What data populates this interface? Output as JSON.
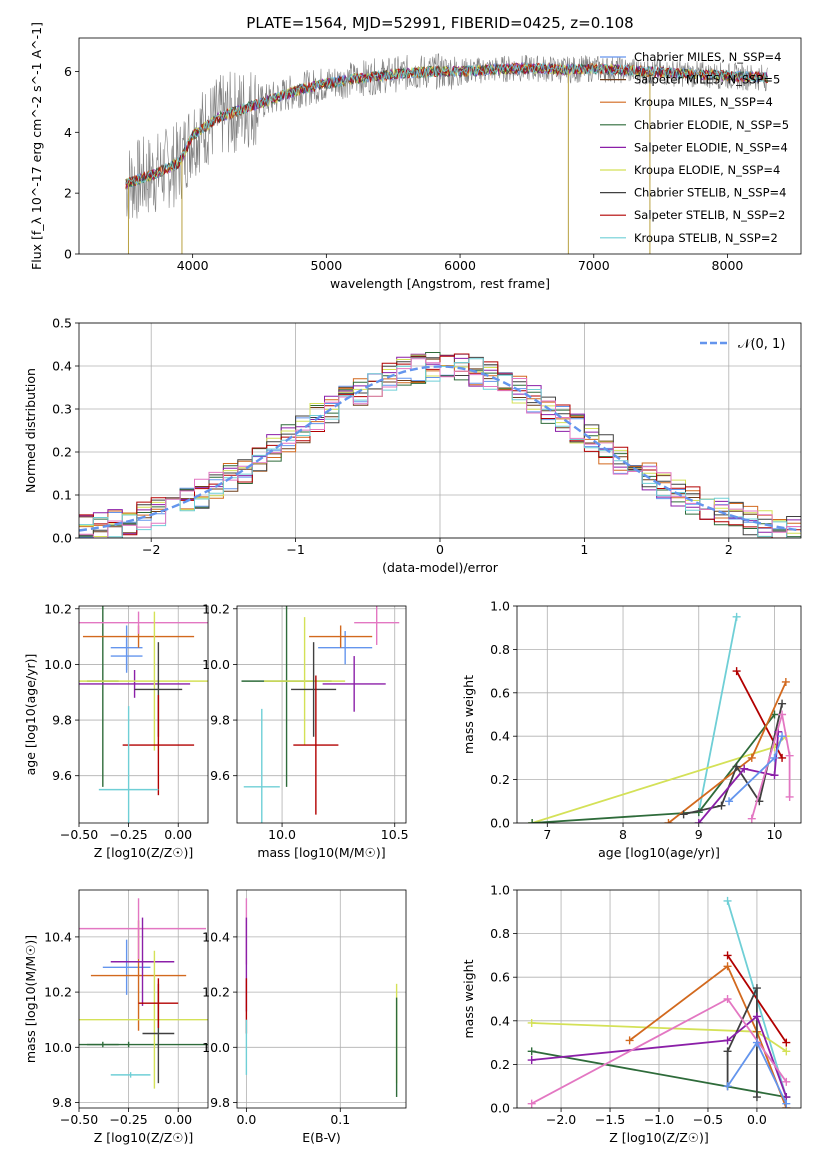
{
  "figure_title": "PLATE=1564, MJD=52991, FIBERID=0425, z=0.108",
  "colors": [
    "#6495ed",
    "#6f3e1a",
    "#d2691e",
    "#2e6b3a",
    "#8b1fa8",
    "#d4e157",
    "#404040",
    "#b20000",
    "#6fcfd6",
    "#e377c2"
  ],
  "chart_data": [
    {
      "id": "spectrum",
      "type": "line",
      "xlabel": "wavelength [Angstrom, rest frame]",
      "ylabel": "Flux [f_λ 10^-17 erg cm^-2 s^-1 A^-1]",
      "xlim": [
        3150,
        8550
      ],
      "ylim": [
        0,
        7.1
      ],
      "xticks": [
        "4000",
        "5000",
        "6000",
        "7000",
        "8000"
      ],
      "yticks": [
        "0",
        "2",
        "4",
        "6"
      ],
      "grid": false,
      "legend_position": "right",
      "legend": [
        {
          "label": "Chabrier MILES, N_SSP=4",
          "color": "#6495ed"
        },
        {
          "label": "Salpeter MILES, N_SSP=5",
          "color": "#6f3e1a"
        },
        {
          "label": "Kroupa MILES, N_SSP=4",
          "color": "#d2691e"
        },
        {
          "label": "Chabrier ELODIE, N_SSP=5",
          "color": "#2e6b3a"
        },
        {
          "label": "Salpeter ELODIE, N_SSP=4",
          "color": "#8b1fa8"
        },
        {
          "label": "Kroupa ELODIE, N_SSP=4",
          "color": "#d4e157"
        },
        {
          "label": "Chabrier STELIB, N_SSP=4",
          "color": "#404040"
        },
        {
          "label": "Salpeter STELIB, N_SSP=2",
          "color": "#b20000"
        },
        {
          "label": "Kroupa STELIB, N_SSP=2",
          "color": "#6fcfd6"
        }
      ],
      "continuum": [
        [
          3500,
          2.3
        ],
        [
          3700,
          2.6
        ],
        [
          3900,
          3.0
        ],
        [
          4000,
          3.9
        ],
        [
          4200,
          4.5
        ],
        [
          4400,
          4.8
        ],
        [
          4600,
          5.1
        ],
        [
          4800,
          5.4
        ],
        [
          5000,
          5.6
        ],
        [
          5200,
          5.75
        ],
        [
          5400,
          5.85
        ],
        [
          5600,
          5.95
        ],
        [
          5800,
          6.0
        ],
        [
          6000,
          6.0
        ],
        [
          6200,
          6.05
        ],
        [
          6400,
          6.1
        ],
        [
          6600,
          6.1
        ],
        [
          6800,
          6.05
        ],
        [
          7000,
          6.1
        ],
        [
          7200,
          6.05
        ],
        [
          7400,
          6.0
        ],
        [
          7600,
          5.95
        ],
        [
          7800,
          5.9
        ],
        [
          8000,
          5.85
        ],
        [
          8300,
          5.8
        ]
      ],
      "emission_spikes": [
        {
          "x": 3520,
          "y": 0
        },
        {
          "x": 3920,
          "y": 0
        },
        {
          "x": 6810,
          "y": 0
        },
        {
          "x": 7420,
          "y": 0
        }
      ]
    },
    {
      "id": "residuals",
      "type": "step",
      "xlabel": "(data-model)/error",
      "ylabel": "Normed distribution",
      "xlim": [
        -2.5,
        2.5
      ],
      "ylim": [
        0,
        0.5
      ],
      "xticks": [
        "-2",
        "-1",
        "0",
        "1",
        "2"
      ],
      "yticks": [
        "0.0",
        "0.1",
        "0.2",
        "0.3",
        "0.4",
        "0.5"
      ],
      "grid": true,
      "legend_position": "top-right",
      "legend": [
        {
          "label": "𝒩(0, 1)",
          "color": "#6495ed",
          "dashed": true
        }
      ],
      "bin_width": 0.1
    },
    {
      "id": "age_vs_Z",
      "type": "errorbar",
      "xlabel": "Z [log10(Z/Z☉)]",
      "ylabel": "age [log10(age/yr)]",
      "xlim": [
        -0.5,
        0.15
      ],
      "ylim": [
        9.43,
        10.21
      ],
      "xticks": [
        "-0.50",
        "-0.25",
        "0.00"
      ],
      "yticks": [
        "9.6",
        "9.8",
        "10.0",
        "10.2"
      ],
      "grid": true,
      "points": [
        {
          "x": -0.38,
          "xerr": 0.08,
          "y": 9.94,
          "yerr": 0.38,
          "color": "#2e6b3a"
        },
        {
          "x": -0.26,
          "xerr": 0.08,
          "y": 10.03,
          "yerr": 0.06,
          "color": "#6495ed"
        },
        {
          "x": -0.26,
          "xerr": 0.08,
          "y": 10.06,
          "yerr": 0.08,
          "color": "#6495ed"
        },
        {
          "x": -0.2,
          "xerr": 0.28,
          "y": 10.1,
          "yerr": 0.04,
          "color": "#d2691e"
        },
        {
          "x": -0.2,
          "xerr": 0.35,
          "y": 10.15,
          "yerr": 0.04,
          "color": "#e377c2"
        },
        {
          "x": -0.22,
          "xerr": 0.28,
          "y": 9.93,
          "yerr": 0.05,
          "color": "#8b1fa8"
        },
        {
          "x": -0.12,
          "xerr": 0.44,
          "y": 9.94,
          "yerr": 0.25,
          "color": "#d4e157"
        },
        {
          "x": -0.1,
          "xerr": 0.12,
          "y": 9.91,
          "yerr": 0.17,
          "color": "#404040"
        },
        {
          "x": -0.1,
          "xerr": 0.18,
          "y": 9.71,
          "yerr": 0.18,
          "color": "#b20000"
        },
        {
          "x": -0.25,
          "xerr": 0.15,
          "y": 9.55,
          "yerr": 0.3,
          "color": "#6fcfd6"
        }
      ]
    },
    {
      "id": "age_vs_mass",
      "type": "errorbar",
      "xlabel": "mass [log10(M/M☉)]",
      "ylabel": "",
      "xlim": [
        9.8,
        10.55
      ],
      "ylim": [
        9.43,
        10.21
      ],
      "xticks": [
        "10.0",
        "10.5"
      ],
      "yticks": [
        "9.6",
        "9.8",
        "10.0",
        "10.2"
      ],
      "grid": true,
      "points": [
        {
          "x": 10.02,
          "xerr": 0.2,
          "y": 9.94,
          "yerr": 0.38,
          "color": "#2e6b3a"
        },
        {
          "x": 10.28,
          "xerr": 0.12,
          "y": 10.06,
          "yerr": 0.06,
          "color": "#6495ed"
        },
        {
          "x": 10.26,
          "xerr": 0.14,
          "y": 10.1,
          "yerr": 0.04,
          "color": "#d2691e"
        },
        {
          "x": 10.42,
          "xerr": 0.1,
          "y": 10.15,
          "yerr": 0.08,
          "color": "#e377c2"
        },
        {
          "x": 10.32,
          "xerr": 0.14,
          "y": 9.93,
          "yerr": 0.1,
          "color": "#8b1fa8"
        },
        {
          "x": 10.1,
          "xerr": 0.18,
          "y": 9.94,
          "yerr": 0.23,
          "color": "#d4e157"
        },
        {
          "x": 10.14,
          "xerr": 0.1,
          "y": 9.91,
          "yerr": 0.17,
          "color": "#404040"
        },
        {
          "x": 10.15,
          "xerr": 0.1,
          "y": 9.71,
          "yerr": 0.25,
          "color": "#b20000"
        },
        {
          "x": 9.91,
          "xerr": 0.08,
          "y": 9.56,
          "yerr": 0.28,
          "color": "#6fcfd6"
        }
      ]
    },
    {
      "id": "weight_vs_age",
      "type": "line",
      "xlabel": "age [log10(age/yr)]",
      "ylabel": "mass weight",
      "xlim": [
        6.6,
        10.35
      ],
      "ylim": [
        0,
        1.0
      ],
      "xticks": [
        "7",
        "8",
        "9",
        "10"
      ],
      "yticks": [
        "0.0",
        "0.2",
        "0.4",
        "0.6",
        "0.8",
        "1.0"
      ],
      "grid": true,
      "series": [
        {
          "color": "#6fcfd6",
          "points": [
            [
              9.0,
              0.05
            ],
            [
              9.5,
              0.95
            ]
          ]
        },
        {
          "color": "#b20000",
          "points": [
            [
              9.5,
              0.7
            ],
            [
              10.1,
              0.3
            ]
          ]
        },
        {
          "color": "#d4e157",
          "points": [
            [
              6.8,
              0.0
            ],
            [
              10.0,
              0.35
            ],
            [
              10.15,
              0.4
            ]
          ]
        },
        {
          "color": "#2e6b3a",
          "points": [
            [
              6.8,
              0.0
            ],
            [
              9.0,
              0.05
            ],
            [
              10.0,
              0.5
            ]
          ]
        },
        {
          "color": "#d2691e",
          "points": [
            [
              8.6,
              0.0
            ],
            [
              9.7,
              0.3
            ],
            [
              10.15,
              0.65
            ]
          ]
        },
        {
          "color": "#404040",
          "points": [
            [
              8.8,
              0.04
            ],
            [
              9.3,
              0.08
            ],
            [
              9.5,
              0.26
            ],
            [
              9.8,
              0.1
            ],
            [
              10.1,
              0.55
            ]
          ]
        },
        {
          "color": "#8b1fa8",
          "points": [
            [
              9.0,
              0.0
            ],
            [
              9.6,
              0.25
            ],
            [
              10.0,
              0.22
            ],
            [
              10.05,
              0.42
            ]
          ]
        },
        {
          "color": "#e377c2",
          "points": [
            [
              9.7,
              0.02
            ],
            [
              10.1,
              0.5
            ],
            [
              10.2,
              0.31
            ],
            [
              10.2,
              0.12
            ]
          ]
        },
        {
          "color": "#6495ed",
          "points": [
            [
              9.4,
              0.1
            ],
            [
              10.0,
              0.3
            ],
            [
              10.1,
              0.4
            ]
          ]
        }
      ]
    },
    {
      "id": "mass_vs_Z",
      "type": "errorbar",
      "xlabel": "Z [log10(Z/Z☉)]",
      "ylabel": "mass [log10(M/M☉)]",
      "xlim": [
        -0.5,
        0.15
      ],
      "ylim": [
        9.78,
        10.57
      ],
      "xticks": [
        "-0.50",
        "-0.25",
        "0.00"
      ],
      "yticks": [
        "9.8",
        "10.0",
        "10.2",
        "10.4"
      ],
      "grid": true,
      "points": [
        {
          "x": -0.38,
          "xerr": 0.08,
          "y": 10.01,
          "yerr": 0.01,
          "color": "#2e6b3a"
        },
        {
          "x": -0.25,
          "xerr": 0.46,
          "y": 10.01,
          "yerr": 0.01,
          "color": "#2e6b3a"
        },
        {
          "x": -0.26,
          "xerr": 0.12,
          "y": 10.29,
          "yerr": 0.1,
          "color": "#6495ed"
        },
        {
          "x": -0.2,
          "xerr": 0.24,
          "y": 10.26,
          "yerr": 0.2,
          "color": "#d2691e"
        },
        {
          "x": -0.2,
          "xerr": 0.34,
          "y": 10.43,
          "yerr": 0.11,
          "color": "#e377c2"
        },
        {
          "x": -0.18,
          "xerr": 0.16,
          "y": 10.31,
          "yerr": 0.16,
          "color": "#8b1fa8"
        },
        {
          "x": -0.12,
          "xerr": 0.4,
          "y": 10.1,
          "yerr": 0.25,
          "color": "#d4e157"
        },
        {
          "x": -0.1,
          "xerr": 0.08,
          "y": 10.05,
          "yerr": 0.18,
          "color": "#404040"
        },
        {
          "x": -0.1,
          "xerr": 0.1,
          "y": 10.16,
          "yerr": 0.09,
          "color": "#b20000"
        },
        {
          "x": -0.24,
          "xerr": 0.1,
          "y": 9.9,
          "yerr": 0.01,
          "color": "#6fcfd6"
        }
      ]
    },
    {
      "id": "mass_vs_EBV",
      "type": "errorbar",
      "xlabel": "E(B-V)",
      "ylabel": "",
      "xlim": [
        -0.01,
        0.17
      ],
      "ylim": [
        9.78,
        10.57
      ],
      "xticks": [
        "0.0",
        "0.1"
      ],
      "yticks": [
        "9.8",
        "10.0",
        "10.2",
        "10.4"
      ],
      "grid": true,
      "points": [
        {
          "x": 0.0,
          "xerr": 0,
          "y": 10.42,
          "yerr": 0.12,
          "color": "#e377c2"
        },
        {
          "x": 0.0,
          "xerr": 0,
          "y": 10.3,
          "yerr": 0.17,
          "color": "#8b1fa8"
        },
        {
          "x": 0.0,
          "xerr": 0,
          "y": 10.15,
          "yerr": 0.1,
          "color": "#b20000"
        },
        {
          "x": 0.0,
          "xerr": 0,
          "y": 10.0,
          "yerr": 0.1,
          "color": "#6fcfd6"
        },
        {
          "x": 0.16,
          "xerr": 0,
          "y": 10.05,
          "yerr": 0.18,
          "color": "#d4e157"
        },
        {
          "x": 0.16,
          "xerr": 0,
          "y": 10.0,
          "yerr": 0.18,
          "color": "#2e6b3a"
        }
      ]
    },
    {
      "id": "weight_vs_Z",
      "type": "line",
      "xlabel": "Z [log10(Z/Z☉)]",
      "ylabel": "mass weight",
      "xlim": [
        -2.45,
        0.45
      ],
      "ylim": [
        0,
        1.0
      ],
      "xticks": [
        "-2.0",
        "-1.5",
        "-1.0",
        "-0.5",
        "0.0"
      ],
      "yticks": [
        "0.0",
        "0.2",
        "0.4",
        "0.6",
        "0.8",
        "1.0"
      ],
      "grid": true,
      "series": [
        {
          "color": "#6fcfd6",
          "points": [
            [
              -0.3,
              0.95
            ],
            [
              0.3,
              0.05
            ]
          ]
        },
        {
          "color": "#b20000",
          "points": [
            [
              -0.3,
              0.7
            ],
            [
              0.3,
              0.3
            ]
          ]
        },
        {
          "color": "#d4e157",
          "points": [
            [
              -2.3,
              0.39
            ],
            [
              0.0,
              0.35
            ],
            [
              0.3,
              0.26
            ]
          ]
        },
        {
          "color": "#2e6b3a",
          "points": [
            [
              -2.3,
              0.26
            ],
            [
              0.3,
              0.05
            ]
          ]
        },
        {
          "color": "#d2691e",
          "points": [
            [
              -1.3,
              0.31
            ],
            [
              -0.3,
              0.65
            ],
            [
              0.0,
              0.35
            ],
            [
              0.3,
              0.0
            ]
          ]
        },
        {
          "color": "#404040",
          "points": [
            [
              -0.3,
              0.1
            ],
            [
              -0.3,
              0.26
            ],
            [
              0.0,
              0.55
            ],
            [
              0.0,
              0.05
            ]
          ]
        },
        {
          "color": "#8b1fa8",
          "points": [
            [
              -2.3,
              0.22
            ],
            [
              -0.3,
              0.31
            ],
            [
              0.0,
              0.42
            ],
            [
              0.3,
              0.05
            ]
          ]
        },
        {
          "color": "#e377c2",
          "points": [
            [
              -2.3,
              0.02
            ],
            [
              -0.3,
              0.5
            ],
            [
              0.3,
              0.12
            ]
          ]
        },
        {
          "color": "#6495ed",
          "points": [
            [
              -0.3,
              0.1
            ],
            [
              0.0,
              0.3
            ],
            [
              0.3,
              0.02
            ]
          ]
        }
      ]
    }
  ]
}
